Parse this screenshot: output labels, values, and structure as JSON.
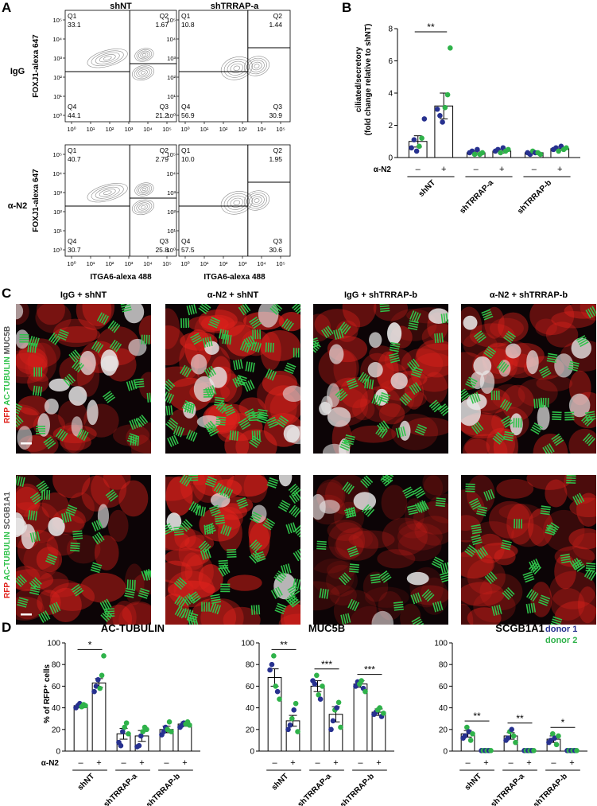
{
  "panels": {
    "A": "A",
    "B": "B",
    "C": "C",
    "D": "D"
  },
  "flow": {
    "col_titles": [
      "shNT",
      "shTRRAP-a"
    ],
    "row_labels": [
      "IgG",
      "α-N2"
    ],
    "ylabel": "FOXJ1-alexa 647",
    "xlabel": "ITGA6-alexa 488",
    "ticks": [
      "10⁰",
      "10¹",
      "10²",
      "10³",
      "10⁴",
      "10⁵"
    ],
    "plots": [
      {
        "q1": "33.1",
        "q2": "1.67",
        "q3": "21.2",
        "q4": "44.1"
      },
      {
        "q1": "10.8",
        "q2": "1.44",
        "q3": "30.9",
        "q4": "56.9"
      },
      {
        "q1": "40.7",
        "q2": "2.79",
        "q3": "25.8",
        "q4": "30.7"
      },
      {
        "q1": "10.0",
        "q2": "1.95",
        "q3": "30.6",
        "q4": "57.5"
      }
    ],
    "quadrant_names": [
      "Q1",
      "Q2",
      "Q3",
      "Q4"
    ]
  },
  "micro": {
    "col_titles": [
      "IgG + shNT",
      "α-N2 + shNT",
      "IgG + shTRRAP-b",
      "α-N2 + shTRRAP-b"
    ],
    "row1_label": [
      "RFP",
      "AC-TUBULIN",
      "MUC5B"
    ],
    "row2_label": [
      "RFP",
      "AC-TUBULIN",
      "SCGB1A1"
    ],
    "colors": {
      "rfp": "#e0221c",
      "tubulin": "#2fc24a",
      "white": "#e8e8e8"
    }
  },
  "legend": {
    "donor1": "donor 1",
    "donor2": "donor 2",
    "donor1_color": "#27318f",
    "donor2_color": "#2fb24a"
  },
  "chart_data": [
    {
      "type": "bar",
      "panel": "B",
      "ylabel": "ciliated/secretory\n(fold change relative to shNT)",
      "ylim": [
        0,
        8
      ],
      "yticks": [
        0,
        2,
        4,
        6,
        8
      ],
      "treatment_label": "α-N2",
      "treatment_signs": [
        "–",
        "+",
        "–",
        "+",
        "–",
        "+"
      ],
      "groups": [
        "shNT",
        "shTRRAP-a",
        "shTRRAP-b"
      ],
      "values": [
        1.0,
        3.2,
        0.3,
        0.4,
        0.3,
        0.55
      ],
      "errors": [
        0.35,
        0.8,
        0.1,
        0.12,
        0.08,
        0.1
      ],
      "points": [
        [
          [
            0.6,
            1
          ],
          [
            1.1,
            1
          ],
          [
            0.4,
            1
          ],
          [
            0.7,
            2
          ],
          [
            1.2,
            2
          ],
          [
            2.4,
            1
          ]
        ],
        [
          [
            3.0,
            1
          ],
          [
            2.6,
            1
          ],
          [
            2.2,
            1
          ],
          [
            3.1,
            2
          ],
          [
            3.9,
            2
          ],
          [
            6.8,
            2
          ]
        ],
        [
          [
            0.3,
            1
          ],
          [
            0.4,
            1
          ],
          [
            0.2,
            2
          ],
          [
            0.5,
            1
          ],
          [
            0.2,
            2
          ],
          [
            0.3,
            2
          ]
        ],
        [
          [
            0.4,
            1
          ],
          [
            0.5,
            1
          ],
          [
            0.3,
            2
          ],
          [
            0.6,
            1
          ],
          [
            0.4,
            2
          ],
          [
            0.5,
            2
          ]
        ],
        [
          [
            0.3,
            1
          ],
          [
            0.2,
            1
          ],
          [
            0.4,
            2
          ],
          [
            0.3,
            1
          ],
          [
            0.3,
            2
          ],
          [
            0.2,
            2
          ]
        ],
        [
          [
            0.5,
            1
          ],
          [
            0.6,
            1
          ],
          [
            0.4,
            2
          ],
          [
            0.7,
            1
          ],
          [
            0.5,
            2
          ],
          [
            0.6,
            2
          ]
        ]
      ],
      "significance": [
        {
          "from": 0,
          "to": 1,
          "label": "**"
        }
      ]
    },
    {
      "type": "bar",
      "panel": "D",
      "title": "AC-TUBULIN",
      "ylabel": "% of RFP⁺ cells",
      "ylim": [
        0,
        100
      ],
      "yticks": [
        0,
        20,
        40,
        60,
        80,
        100
      ],
      "treatment_label": "α-N2",
      "treatment_signs": [
        "–",
        "+",
        "–",
        "+",
        "–",
        "+"
      ],
      "groups": [
        "shNT",
        "shTRRAP-a",
        "shTRRAP-b"
      ],
      "values": [
        42,
        63,
        16,
        14,
        20,
        25
      ],
      "errors": [
        2,
        4,
        5,
        5,
        3,
        2
      ],
      "points": [
        [
          [
            40,
            1
          ],
          [
            42,
            1
          ],
          [
            44,
            1
          ],
          [
            41,
            2
          ],
          [
            43,
            2
          ],
          [
            42,
            2
          ]
        ],
        [
          [
            55,
            1
          ],
          [
            60,
            1
          ],
          [
            66,
            1
          ],
          [
            58,
            2
          ],
          [
            70,
            2
          ],
          [
            88,
            2
          ]
        ],
        [
          [
            8,
            1
          ],
          [
            5,
            1
          ],
          [
            18,
            1
          ],
          [
            22,
            2
          ],
          [
            26,
            2
          ],
          [
            16,
            2
          ]
        ],
        [
          [
            4,
            1
          ],
          [
            5,
            1
          ],
          [
            14,
            1
          ],
          [
            18,
            2
          ],
          [
            22,
            2
          ],
          [
            20,
            2
          ]
        ],
        [
          [
            15,
            1
          ],
          [
            18,
            1
          ],
          [
            22,
            1
          ],
          [
            20,
            2
          ],
          [
            27,
            2
          ],
          [
            18,
            2
          ]
        ],
        [
          [
            22,
            1
          ],
          [
            24,
            1
          ],
          [
            26,
            1
          ],
          [
            25,
            2
          ],
          [
            27,
            2
          ],
          [
            24,
            2
          ]
        ]
      ],
      "significance": [
        {
          "from": 0,
          "to": 1,
          "label": "*"
        }
      ]
    },
    {
      "type": "bar",
      "panel": "D",
      "title": "MUC5B",
      "ylim": [
        0,
        100
      ],
      "yticks": [
        0,
        20,
        40,
        60,
        80,
        100
      ],
      "treatment_signs": [
        "–",
        "+",
        "–",
        "+",
        "–",
        "+"
      ],
      "groups": [
        "shNT",
        "shTRRAP-a",
        "shTRRAP-b"
      ],
      "values": [
        68,
        28,
        60,
        34,
        62,
        36
      ],
      "errors": [
        8,
        5,
        5,
        7,
        3,
        3
      ],
      "points": [
        [
          [
            75,
            1
          ],
          [
            80,
            1
          ],
          [
            88,
            2
          ],
          [
            60,
            2
          ],
          [
            55,
            1
          ],
          [
            48,
            2
          ]
        ],
        [
          [
            20,
            1
          ],
          [
            24,
            1
          ],
          [
            30,
            2
          ],
          [
            38,
            1
          ],
          [
            44,
            2
          ],
          [
            18,
            2
          ]
        ],
        [
          [
            65,
            1
          ],
          [
            62,
            1
          ],
          [
            70,
            2
          ],
          [
            52,
            2
          ],
          [
            48,
            1
          ],
          [
            60,
            2
          ]
        ],
        [
          [
            20,
            1
          ],
          [
            28,
            1
          ],
          [
            38,
            2
          ],
          [
            40,
            1
          ],
          [
            45,
            2
          ],
          [
            22,
            2
          ]
        ],
        [
          [
            60,
            1
          ],
          [
            64,
            1
          ],
          [
            62,
            2
          ],
          [
            65,
            2
          ],
          [
            58,
            1
          ],
          [
            55,
            2
          ]
        ],
        [
          [
            34,
            1
          ],
          [
            36,
            1
          ],
          [
            38,
            2
          ],
          [
            40,
            2
          ],
          [
            32,
            1
          ],
          [
            35,
            2
          ]
        ]
      ],
      "significance": [
        {
          "from": 0,
          "to": 1,
          "label": "**"
        },
        {
          "from": 2,
          "to": 3,
          "label": "***"
        },
        {
          "from": 4,
          "to": 5,
          "label": "***"
        }
      ]
    },
    {
      "type": "bar",
      "panel": "D",
      "title": "SCGB1A1",
      "ylim": [
        0,
        100
      ],
      "yticks": [
        0,
        20,
        40,
        60,
        80,
        100
      ],
      "treatment_signs": [
        "–",
        "+",
        "–",
        "+",
        "–",
        "+"
      ],
      "groups": [
        "shNT",
        "shTRRAP-a",
        "shTRRAP-b"
      ],
      "values": [
        16,
        0.5,
        14,
        0.5,
        11,
        0.5
      ],
      "errors": [
        3,
        0.3,
        3,
        0.3,
        3,
        0.3
      ],
      "points": [
        [
          [
            12,
            1
          ],
          [
            14,
            1
          ],
          [
            22,
            2
          ],
          [
            18,
            1
          ],
          [
            10,
            2
          ],
          [
            16,
            2
          ]
        ],
        [
          [
            0.5,
            1
          ],
          [
            0.5,
            2
          ],
          [
            0.5,
            1
          ],
          [
            0.5,
            2
          ],
          [
            0.5,
            1
          ],
          [
            0.5,
            2
          ]
        ],
        [
          [
            10,
            1
          ],
          [
            12,
            1
          ],
          [
            18,
            2
          ],
          [
            20,
            1
          ],
          [
            14,
            2
          ],
          [
            8,
            2
          ]
        ],
        [
          [
            0.5,
            1
          ],
          [
            0.5,
            2
          ],
          [
            0.5,
            1
          ],
          [
            0.5,
            2
          ],
          [
            0.5,
            1
          ],
          [
            0.5,
            2
          ]
        ],
        [
          [
            8,
            1
          ],
          [
            10,
            1
          ],
          [
            16,
            2
          ],
          [
            12,
            1
          ],
          [
            6,
            2
          ],
          [
            14,
            2
          ]
        ],
        [
          [
            0.5,
            1
          ],
          [
            0.5,
            2
          ],
          [
            0.5,
            1
          ],
          [
            0.5,
            2
          ],
          [
            0.5,
            1
          ],
          [
            0.5,
            2
          ]
        ]
      ],
      "significance": [
        {
          "from": 0,
          "to": 1,
          "label": "**"
        },
        {
          "from": 2,
          "to": 3,
          "label": "**"
        },
        {
          "from": 4,
          "to": 5,
          "label": "*"
        }
      ]
    }
  ]
}
